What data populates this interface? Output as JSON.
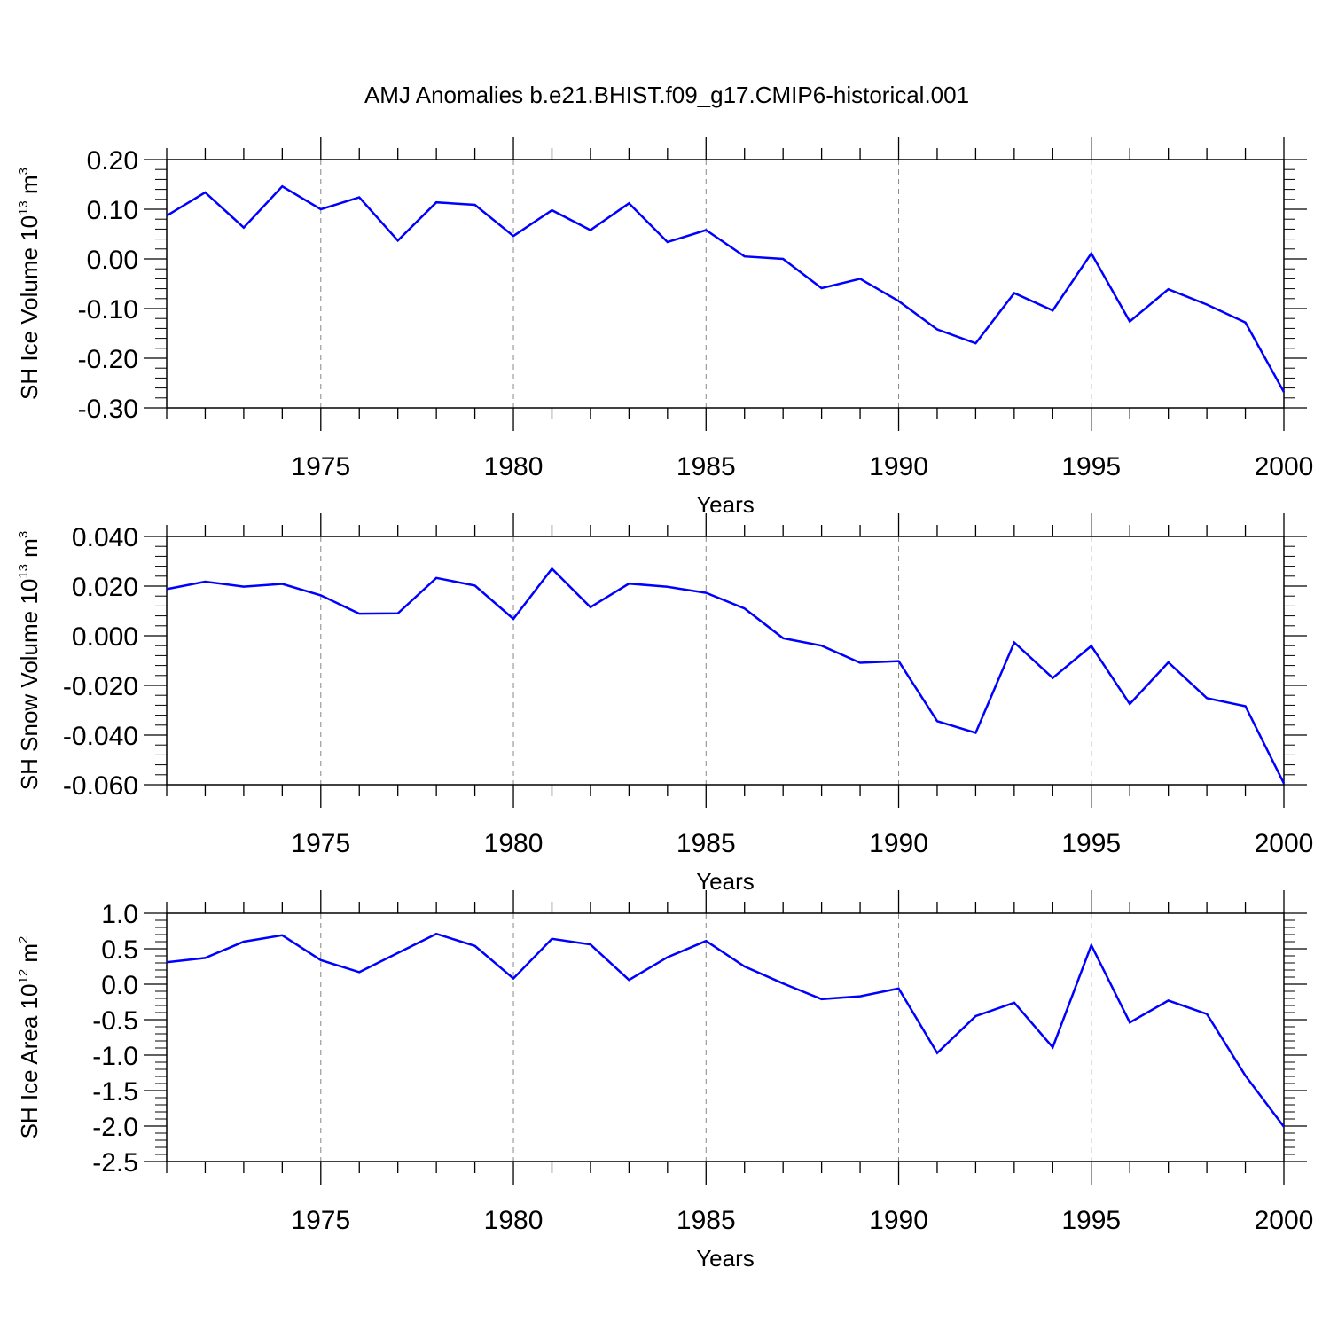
{
  "title": "AMJ Anomalies b.e21.BHIST.f09_g17.CMIP6-historical.001",
  "chart_data": [
    {
      "type": "line",
      "ylabel": "SH Ice Volume 10",
      "ylabel_exp": "13",
      "ylabel_unit": " m",
      "ylabel_unit_exp": "3",
      "xlabel": "Years",
      "xlim": [
        1971,
        2000
      ],
      "ylim": [
        -0.3,
        0.2
      ],
      "xticks": [
        1975,
        1980,
        1985,
        1990,
        1995,
        2000
      ],
      "xtick_labels": [
        "1975",
        "1980",
        "1985",
        "1990",
        "1995",
        "2000"
      ],
      "yticks": [
        0.2,
        0.1,
        0.0,
        -0.1,
        -0.2,
        -0.3
      ],
      "ytick_labels": [
        "0.20",
        "0.10",
        "0.00",
        "-0.10",
        "-0.20",
        "-0.30"
      ],
      "grid": "vertical dashed at major x ticks",
      "line_color": "#0000ff",
      "series": [
        {
          "x": [
            1971,
            1972,
            1973,
            1974,
            1975,
            1976,
            1977,
            1978,
            1979,
            1980,
            1981,
            1982,
            1983,
            1984,
            1985,
            1986,
            1987,
            1988,
            1989,
            1990,
            1991,
            1992,
            1993,
            1994,
            1995,
            1996,
            1997,
            1998,
            1999,
            2000
          ],
          "values": [
            0.087,
            0.134,
            0.063,
            0.146,
            0.1,
            0.124,
            0.037,
            0.114,
            0.109,
            0.046,
            0.098,
            0.058,
            0.112,
            0.034,
            0.058,
            0.005,
            0.0,
            -0.059,
            -0.04,
            -0.085,
            -0.142,
            -0.17,
            -0.069,
            -0.104,
            0.011,
            -0.126,
            -0.061,
            -0.092,
            -0.128,
            -0.268
          ]
        }
      ]
    },
    {
      "type": "line",
      "ylabel": "SH Snow Volume 10",
      "ylabel_exp": "13",
      "ylabel_unit": " m",
      "ylabel_unit_exp": "3",
      "xlabel": "Years",
      "xlim": [
        1971,
        2000
      ],
      "ylim": [
        -0.06,
        0.04
      ],
      "xticks": [
        1975,
        1980,
        1985,
        1990,
        1995,
        2000
      ],
      "xtick_labels": [
        "1975",
        "1980",
        "1985",
        "1990",
        "1995",
        "2000"
      ],
      "yticks": [
        0.04,
        0.02,
        0.0,
        -0.02,
        -0.04,
        -0.06
      ],
      "ytick_labels": [
        "0.040",
        "0.020",
        "0.000",
        "-0.020",
        "-0.040",
        "-0.060"
      ],
      "grid": "vertical dashed at major x ticks",
      "line_color": "#0000ff",
      "series": [
        {
          "x": [
            1971,
            1972,
            1973,
            1974,
            1975,
            1976,
            1977,
            1978,
            1979,
            1980,
            1981,
            1982,
            1983,
            1984,
            1985,
            1986,
            1987,
            1988,
            1989,
            1990,
            1991,
            1992,
            1993,
            1994,
            1995,
            1996,
            1997,
            1998,
            1999,
            2000
          ],
          "values": [
            0.0188,
            0.0218,
            0.0198,
            0.0209,
            0.0163,
            0.0089,
            0.009,
            0.0233,
            0.0202,
            0.0068,
            0.027,
            0.0115,
            0.021,
            0.0197,
            0.0173,
            0.011,
            -0.001,
            -0.004,
            -0.0109,
            -0.0102,
            -0.0344,
            -0.0391,
            -0.0027,
            -0.017,
            -0.0041,
            -0.0275,
            -0.0107,
            -0.0251,
            -0.0284,
            -0.0595
          ]
        }
      ]
    },
    {
      "type": "line",
      "ylabel": "SH Ice Area 10",
      "ylabel_exp": "12",
      "ylabel_unit": " m",
      "ylabel_unit_exp": "2",
      "xlabel": "Years",
      "xlim": [
        1971,
        2000
      ],
      "ylim": [
        -2.5,
        1.0
      ],
      "xticks": [
        1975,
        1980,
        1985,
        1990,
        1995,
        2000
      ],
      "xtick_labels": [
        "1975",
        "1980",
        "1985",
        "1990",
        "1995",
        "2000"
      ],
      "yticks": [
        1.0,
        0.5,
        0.0,
        -0.5,
        -1.0,
        -1.5,
        -2.0,
        -2.5
      ],
      "ytick_labels": [
        "1.0",
        "0.5",
        "0.0",
        "-0.5",
        "-1.0",
        "-1.5",
        "-2.0",
        "-2.5"
      ],
      "grid": "vertical dashed at major x ticks",
      "line_color": "#0000ff",
      "series": [
        {
          "x": [
            1971,
            1972,
            1973,
            1974,
            1975,
            1976,
            1977,
            1978,
            1979,
            1980,
            1981,
            1982,
            1983,
            1984,
            1985,
            1986,
            1987,
            1988,
            1989,
            1990,
            1991,
            1992,
            1993,
            1994,
            1995,
            1996,
            1997,
            1998,
            1999,
            2000
          ],
          "values": [
            0.31,
            0.37,
            0.6,
            0.69,
            0.34,
            0.17,
            0.44,
            0.71,
            0.54,
            0.08,
            0.64,
            0.56,
            0.06,
            0.38,
            0.61,
            0.25,
            0.01,
            -0.21,
            -0.17,
            -0.06,
            -0.97,
            -0.45,
            -0.26,
            -0.89,
            0.55,
            -0.54,
            -0.23,
            -0.42,
            -1.29,
            -2.01
          ]
        }
      ]
    }
  ]
}
